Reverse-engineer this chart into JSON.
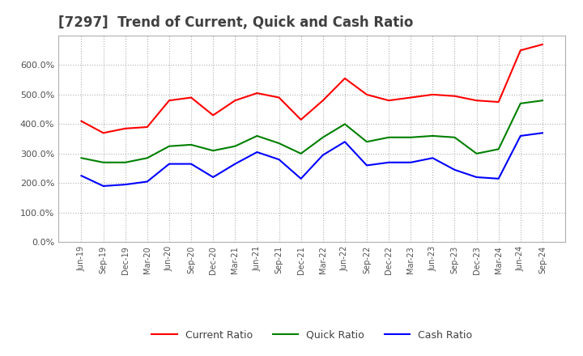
{
  "title": "[7297]  Trend of Current, Quick and Cash Ratio",
  "title_fontsize": 12,
  "title_color": "#404040",
  "background_color": "#ffffff",
  "plot_bg_color": "#ffffff",
  "grid_color": "#b0b0b0",
  "ylim": [
    0,
    700
  ],
  "yticks": [
    0,
    100,
    200,
    300,
    400,
    500,
    600
  ],
  "x_labels": [
    "Jun-19",
    "Sep-19",
    "Dec-19",
    "Mar-20",
    "Jun-20",
    "Sep-20",
    "Dec-20",
    "Mar-21",
    "Jun-21",
    "Sep-21",
    "Dec-21",
    "Mar-22",
    "Jun-22",
    "Sep-22",
    "Dec-22",
    "Mar-23",
    "Jun-23",
    "Sep-23",
    "Dec-23",
    "Mar-24",
    "Jun-24",
    "Sep-24"
  ],
  "current_ratio": [
    410,
    370,
    385,
    390,
    480,
    490,
    430,
    480,
    505,
    490,
    415,
    480,
    555,
    500,
    480,
    490,
    500,
    495,
    480,
    475,
    650,
    670
  ],
  "quick_ratio": [
    285,
    270,
    270,
    285,
    325,
    330,
    310,
    325,
    360,
    335,
    300,
    355,
    400,
    340,
    355,
    355,
    360,
    355,
    300,
    315,
    470,
    480
  ],
  "cash_ratio": [
    225,
    190,
    195,
    205,
    265,
    265,
    220,
    265,
    305,
    280,
    215,
    295,
    340,
    260,
    270,
    270,
    285,
    245,
    220,
    215,
    360,
    370
  ],
  "current_color": "#ff0000",
  "quick_color": "#008000",
  "cash_color": "#0000ff",
  "legend_labels": [
    "Current Ratio",
    "Quick Ratio",
    "Cash Ratio"
  ],
  "line_width": 1.5
}
